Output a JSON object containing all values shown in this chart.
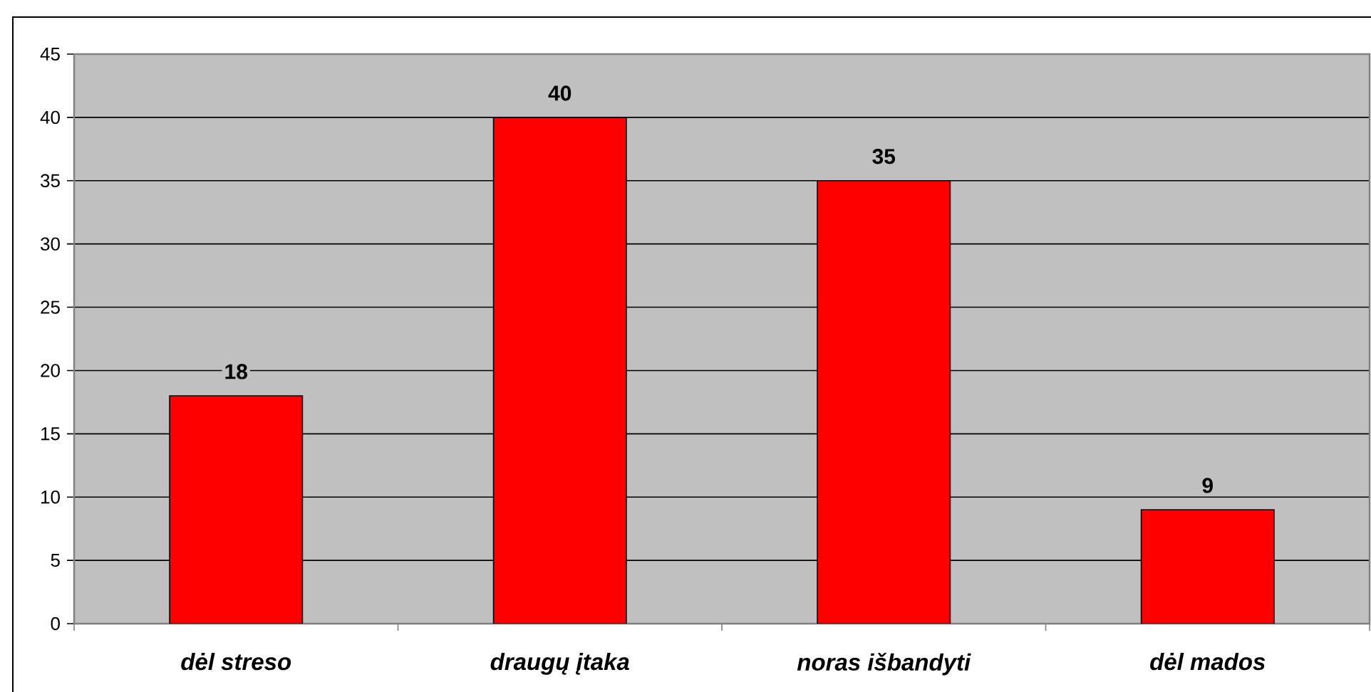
{
  "chart_data": {
    "type": "bar",
    "categories": [
      "dėl streso",
      "draugų įtaka",
      "noras išbandyti",
      "dėl mados"
    ],
    "values": [
      18,
      40,
      35,
      9
    ],
    "color": "#ff0000",
    "ylim": [
      0,
      45
    ],
    "yticks": [
      0,
      5,
      10,
      15,
      20,
      25,
      30,
      35,
      40,
      45
    ],
    "grid": "y",
    "data_labels": true
  }
}
